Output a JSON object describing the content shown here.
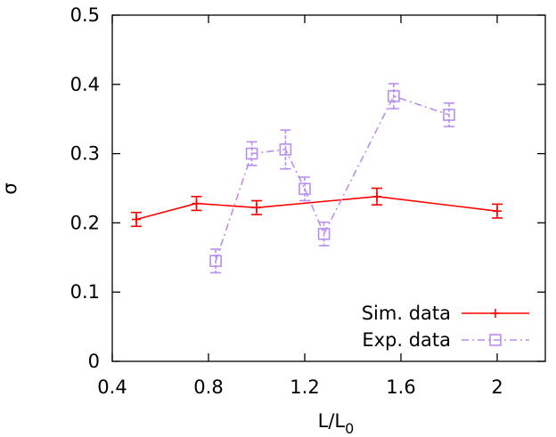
{
  "chart_data": {
    "type": "line",
    "xlabel": "L/L",
    "xlabel_sub": "0",
    "ylabel": "σ",
    "xlim": [
      0.4,
      2.2
    ],
    "ylim": [
      0,
      0.5
    ],
    "x_ticks": [
      0.4,
      0.8,
      1.2,
      1.6,
      2.0
    ],
    "x_tick_labels": [
      "0.4",
      "0.8",
      "1.2",
      "1.6",
      "2"
    ],
    "y_ticks": [
      0,
      0.1,
      0.2,
      0.3,
      0.4,
      0.5
    ],
    "y_tick_labels": [
      "0",
      "0.1",
      "0.2",
      "0.3",
      "0.4",
      "0.5"
    ],
    "grid": false,
    "legend_position": "bottom-right",
    "series": [
      {
        "name": "Sim. data",
        "color": "#ff0000",
        "line_style": "solid",
        "marker": "plus",
        "points": [
          {
            "x": 0.5,
            "y": 0.205,
            "err": 0.01
          },
          {
            "x": 0.75,
            "y": 0.228,
            "err": 0.01
          },
          {
            "x": 1.0,
            "y": 0.222,
            "err": 0.01
          },
          {
            "x": 1.5,
            "y": 0.238,
            "err": 0.012
          },
          {
            "x": 2.0,
            "y": 0.217,
            "err": 0.01
          }
        ]
      },
      {
        "name": "Exp. data",
        "color": "#b98ef0",
        "line_style": "dash-dot",
        "marker": "square",
        "points": [
          {
            "x": 0.83,
            "y": 0.145,
            "err": 0.017
          },
          {
            "x": 0.98,
            "y": 0.3,
            "err": 0.017
          },
          {
            "x": 1.12,
            "y": 0.306,
            "err": 0.028
          },
          {
            "x": 1.2,
            "y": 0.249,
            "err": 0.017
          },
          {
            "x": 1.28,
            "y": 0.184,
            "err": 0.017
          },
          {
            "x": 1.57,
            "y": 0.383,
            "err": 0.018
          },
          {
            "x": 1.8,
            "y": 0.356,
            "err": 0.017
          }
        ]
      }
    ]
  }
}
